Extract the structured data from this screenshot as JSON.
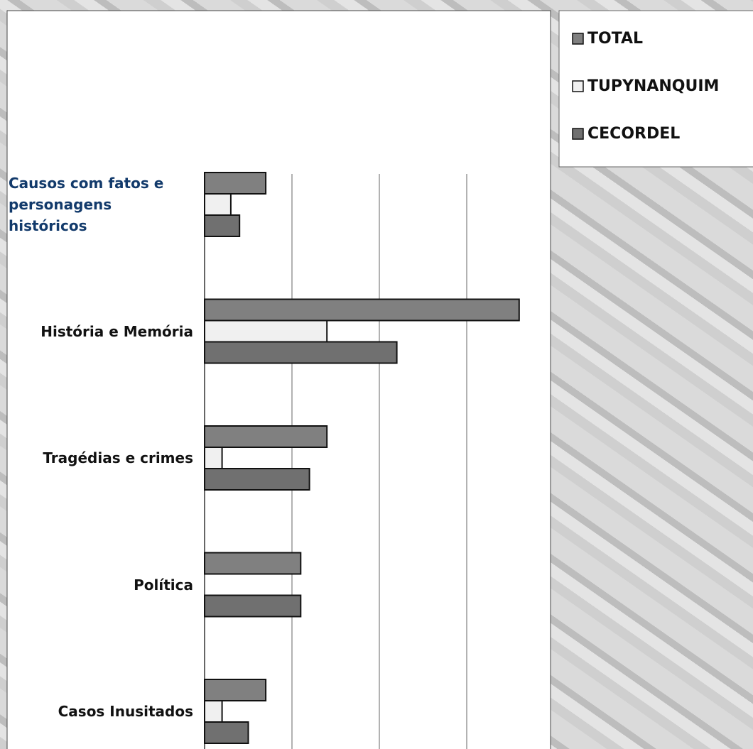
{
  "chart_data": {
    "type": "bar",
    "orientation": "horizontal",
    "categories": [
      "Causos com fatos e personagens históricos",
      "História e Memória",
      "Tragédias e crimes",
      "Política",
      "Casos Inusitados"
    ],
    "series": [
      {
        "name": "TOTAL",
        "color": "#808080",
        "values": [
          7,
          36,
          14,
          11,
          7
        ]
      },
      {
        "name": "TUPYNANQUIM",
        "color": "#f0f0f0",
        "values": [
          3,
          14,
          2,
          0,
          2
        ]
      },
      {
        "name": "CECORDEL",
        "color": "#707070",
        "values": [
          4,
          22,
          12,
          11,
          5
        ]
      }
    ],
    "xlim": [
      0,
      40
    ],
    "xticks": [
      0,
      10,
      20,
      30,
      40
    ],
    "grid": true,
    "legend": "top-right"
  }
}
